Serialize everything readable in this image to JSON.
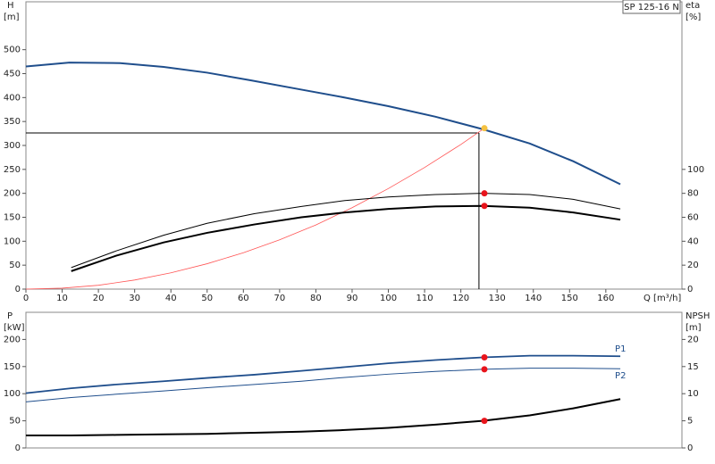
{
  "chart_data": [
    {
      "type": "line",
      "title": "SP 125-16 N",
      "ylabel": "H",
      "yunit": "[m]",
      "y2label": "eta",
      "y2unit": "[%]",
      "xlabel": "Q [m³/h]",
      "xlim": [
        0,
        181
      ],
      "xticks": [
        0,
        10,
        20,
        30,
        40,
        50,
        60,
        70,
        80,
        90,
        100,
        110,
        120,
        130,
        140,
        150,
        160
      ],
      "ylim": [
        0,
        600
      ],
      "yticks": [
        0,
        50,
        100,
        150,
        200,
        250,
        300,
        350,
        400,
        450,
        500
      ],
      "y2lim": [
        0,
        240
      ],
      "y2ticks": [
        0,
        20,
        40,
        60,
        80,
        100
      ],
      "series": [
        {
          "color": "#1f4e8c",
          "width": 2,
          "axis": "y",
          "x": [
            0,
            12,
            26,
            38,
            50,
            62,
            75,
            88,
            100,
            113,
            126,
            139,
            151,
            164
          ],
          "values": [
            465,
            473,
            472,
            464,
            452,
            436,
            418,
            400,
            382,
            360,
            334,
            304,
            267,
            219
          ]
        },
        {
          "color": "#ff5555",
          "width": 0.8,
          "axis": "y",
          "x": [
            0,
            10,
            20,
            30,
            40,
            50,
            60,
            70,
            80,
            90,
            100,
            110,
            120,
            126.5
          ],
          "values": [
            0,
            2,
            8,
            19,
            34,
            53,
            76,
            103,
            134,
            170,
            210,
            254,
            302,
            336
          ]
        },
        {
          "color": "#000000",
          "width": 1,
          "axis": "y2",
          "x": [
            12.5,
            25,
            38,
            50,
            63,
            76,
            88,
            100,
            113,
            126,
            139,
            151,
            164
          ],
          "values": [
            18,
            32,
            45,
            55,
            63,
            69,
            74,
            77,
            79,
            80,
            79,
            75,
            67
          ]
        },
        {
          "color": "#000000",
          "width": 2,
          "axis": "y2",
          "x": [
            12.5,
            25,
            38,
            50,
            63,
            76,
            88,
            100,
            113,
            126,
            139,
            151,
            164
          ],
          "values": [
            15,
            28,
            39,
            47,
            54,
            60,
            64,
            67,
            69,
            69.5,
            68,
            64,
            58
          ]
        }
      ],
      "duty_lines": {
        "x": 125,
        "y": 326
      },
      "markers": [
        {
          "x": 126.5,
          "y": 336,
          "axis": "y",
          "color": "#f5c242"
        },
        {
          "x": 126.5,
          "y": 80,
          "axis": "y2",
          "color": "#e8141c"
        },
        {
          "x": 126.5,
          "y": 69.5,
          "axis": "y2",
          "color": "#e8141c"
        }
      ]
    },
    {
      "type": "line",
      "ylabel": "P",
      "yunit": "[kW]",
      "y2label": "NPSH",
      "y2unit": "[m]",
      "xlim": [
        0,
        181
      ],
      "ylim": [
        0,
        250
      ],
      "yticks": [
        0,
        50,
        100,
        150,
        200
      ],
      "y2lim": [
        0,
        25
      ],
      "y2ticks": [
        0,
        5,
        10,
        15,
        20
      ],
      "series": [
        {
          "name": "P1",
          "color": "#1f4e8c",
          "width": 1.8,
          "axis": "y",
          "x": [
            0,
            12.5,
            25,
            38,
            50,
            63,
            76,
            88,
            100,
            113,
            126,
            139,
            151,
            164
          ],
          "values": [
            101,
            110,
            117,
            123,
            129,
            135,
            142,
            149,
            156,
            162,
            167,
            170,
            170,
            169
          ]
        },
        {
          "name": "P2",
          "color": "#1f4e8c",
          "width": 1,
          "axis": "y",
          "x": [
            0,
            12.5,
            25,
            38,
            50,
            63,
            76,
            88,
            100,
            113,
            126,
            139,
            151,
            164
          ],
          "values": [
            85,
            93,
            99,
            105,
            111,
            117,
            123,
            130,
            136,
            141,
            145,
            147,
            147,
            146
          ]
        },
        {
          "color": "#000000",
          "width": 2,
          "axis": "y2",
          "x": [
            0,
            12.5,
            25,
            38,
            50,
            63,
            76,
            88,
            100,
            113,
            126,
            139,
            151,
            164
          ],
          "values": [
            2.3,
            2.3,
            2.4,
            2.5,
            2.6,
            2.8,
            3.0,
            3.3,
            3.7,
            4.3,
            5.0,
            6.0,
            7.3,
            9.0
          ]
        }
      ],
      "markers": [
        {
          "x": 126.5,
          "y": 167,
          "axis": "y",
          "color": "#e8141c"
        },
        {
          "x": 126.5,
          "y": 145,
          "axis": "y",
          "color": "#e8141c"
        },
        {
          "x": 126.5,
          "y": 5.0,
          "axis": "y2",
          "color": "#e8141c"
        }
      ]
    }
  ]
}
